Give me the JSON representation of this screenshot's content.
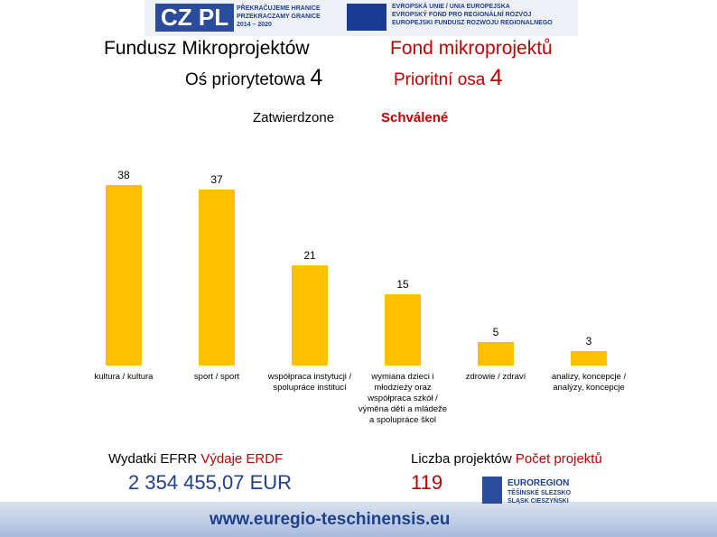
{
  "header": {
    "logo": "CZ PL",
    "program": [
      "PŘEKRAČUJEME HRANICE",
      "PRZEKRACZAMY GRANICE",
      "2014 – 2020"
    ],
    "eu": [
      "EVROPSKÁ UNIE / UNIA EUROPEJSKA",
      "EVROPSKÝ FOND PRO REGIONÁLNÍ ROZVOJ",
      "EUROPEJSKI FUNDUSZ ROZWOJU REGIONALNEGO"
    ]
  },
  "title_pl": "Fundusz Mikroprojektów",
  "axis_pl": "Oś priorytetowa",
  "axis_pl_num": "4",
  "title_cz": "Fond mikroprojektů",
  "axis_cz": "Prioritní osa",
  "axis_cz_num": "4",
  "approved_pl": "Zatwierdzone",
  "approved_cz": "Schválené",
  "chart_data": {
    "type": "bar",
    "color": "#ffc000",
    "categories": [
      "kultura / kultura",
      "sport / sport",
      "współpraca instytucji / spolupráce institucí",
      "wymiana dzieci i młodzieży oraz współpraca szkół / výměna dětí a mládeže a spolupráce škol",
      "zdrowie / zdraví",
      "analizy, koncepcje / analýzy, koncepcje"
    ],
    "values": [
      38,
      37,
      21,
      15,
      5,
      3
    ]
  },
  "footer": {
    "spend_pl": "Wydatki EFRR",
    "spend_cz": "Výdaje ERDF",
    "spend_value": "2 354 455,07 EUR",
    "count_pl": "Liczba projektów",
    "count_cz": "Počet projektů",
    "count_value": "119",
    "url": "www.euregio-teschinensis.eu",
    "euroregion": [
      "EUROREGION",
      "TĚŠÍNSKÉ SLEZSKO",
      "ŚLĄSK CIESZYŃSKI"
    ]
  }
}
